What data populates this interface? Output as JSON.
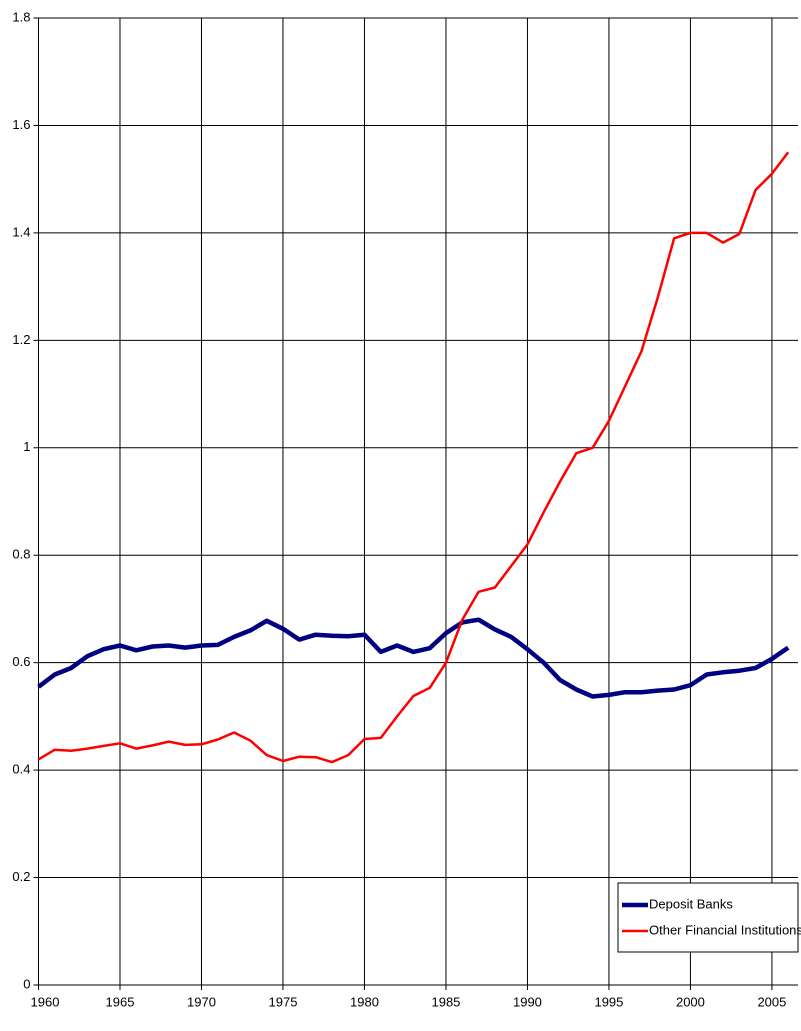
{
  "chart_data": {
    "type": "line",
    "x": [
      1960,
      1961,
      1962,
      1963,
      1964,
      1965,
      1966,
      1967,
      1968,
      1969,
      1970,
      1971,
      1972,
      1973,
      1974,
      1975,
      1976,
      1977,
      1978,
      1979,
      1980,
      1981,
      1982,
      1983,
      1984,
      1985,
      1986,
      1987,
      1988,
      1989,
      1990,
      1991,
      1992,
      1993,
      1994,
      1995,
      1996,
      1997,
      1998,
      1999,
      2000,
      2001,
      2002,
      2003,
      2004,
      2005,
      2006
    ],
    "series": [
      {
        "name": "Deposit Banks",
        "color": "#000080",
        "width": 4.5,
        "values": [
          0.555,
          0.578,
          0.59,
          0.612,
          0.625,
          0.632,
          0.623,
          0.63,
          0.632,
          0.628,
          0.632,
          0.633,
          0.648,
          0.66,
          0.678,
          0.663,
          0.643,
          0.652,
          0.65,
          0.649,
          0.652,
          0.62,
          0.632,
          0.62,
          0.627,
          0.655,
          0.675,
          0.68,
          0.662,
          0.648,
          0.625,
          0.6,
          0.568,
          0.55,
          0.537,
          0.54,
          0.545,
          0.545,
          0.548,
          0.55,
          0.558,
          0.578,
          0.582,
          0.585,
          0.59,
          0.607,
          0.628
        ]
      },
      {
        "name": "Other Financial Institutions",
        "color": "#ff0000",
        "width": 2.5,
        "values": [
          0.42,
          0.438,
          0.436,
          0.44,
          0.445,
          0.45,
          0.44,
          0.446,
          0.453,
          0.447,
          0.448,
          0.457,
          0.47,
          0.455,
          0.428,
          0.417,
          0.425,
          0.424,
          0.415,
          0.428,
          0.458,
          0.46,
          0.5,
          0.538,
          0.553,
          0.6,
          0.68,
          0.732,
          0.74,
          0.78,
          0.82,
          0.88,
          0.937,
          0.99,
          1.0,
          1.05,
          1.115,
          1.18,
          1.28,
          1.39,
          1.4,
          1.4,
          1.382,
          1.398,
          1.48,
          1.51,
          1.55
        ]
      }
    ],
    "xlim": [
      1960,
      2006.6
    ],
    "xticks": [
      1960,
      1965,
      1970,
      1975,
      1980,
      1985,
      1990,
      1995,
      2000,
      2005
    ],
    "ylim": [
      0,
      1.8
    ],
    "yticks": [
      0,
      0.2,
      0.4,
      0.6,
      0.8,
      1,
      1.2,
      1.4,
      1.6,
      1.8
    ],
    "grid": true,
    "legend": "lower right"
  }
}
